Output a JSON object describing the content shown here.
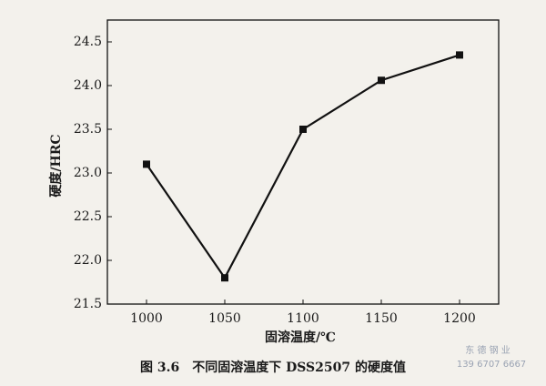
{
  "chart_data": {
    "type": "line",
    "title": "图 3.6　不同固溶温度下 DSS2507 的硬度值",
    "x_label": "固溶温度/℃",
    "y_label": "硬度/HRC",
    "x": [
      1000,
      1050,
      1100,
      1150,
      1200
    ],
    "series": [
      {
        "name": "硬度",
        "color": "#111111",
        "values": [
          23.1,
          21.8,
          23.5,
          24.06,
          24.35
        ]
      }
    ],
    "xlim": [
      975,
      1225
    ],
    "xticks": [
      1000,
      1050,
      1100,
      1150,
      1200
    ],
    "ylim": [
      21.5,
      24.75
    ],
    "yticks": [
      21.5,
      {
        "value": 22,
        "label": "22.0"
      },
      22.5,
      {
        "value": 23,
        "label": "23.0"
      },
      23.5,
      {
        "value": 24,
        "label": "24.0"
      },
      24.5
    ],
    "grid": false,
    "watermark": [
      "东 德 钢 业",
      "139 6707 6667"
    ]
  }
}
